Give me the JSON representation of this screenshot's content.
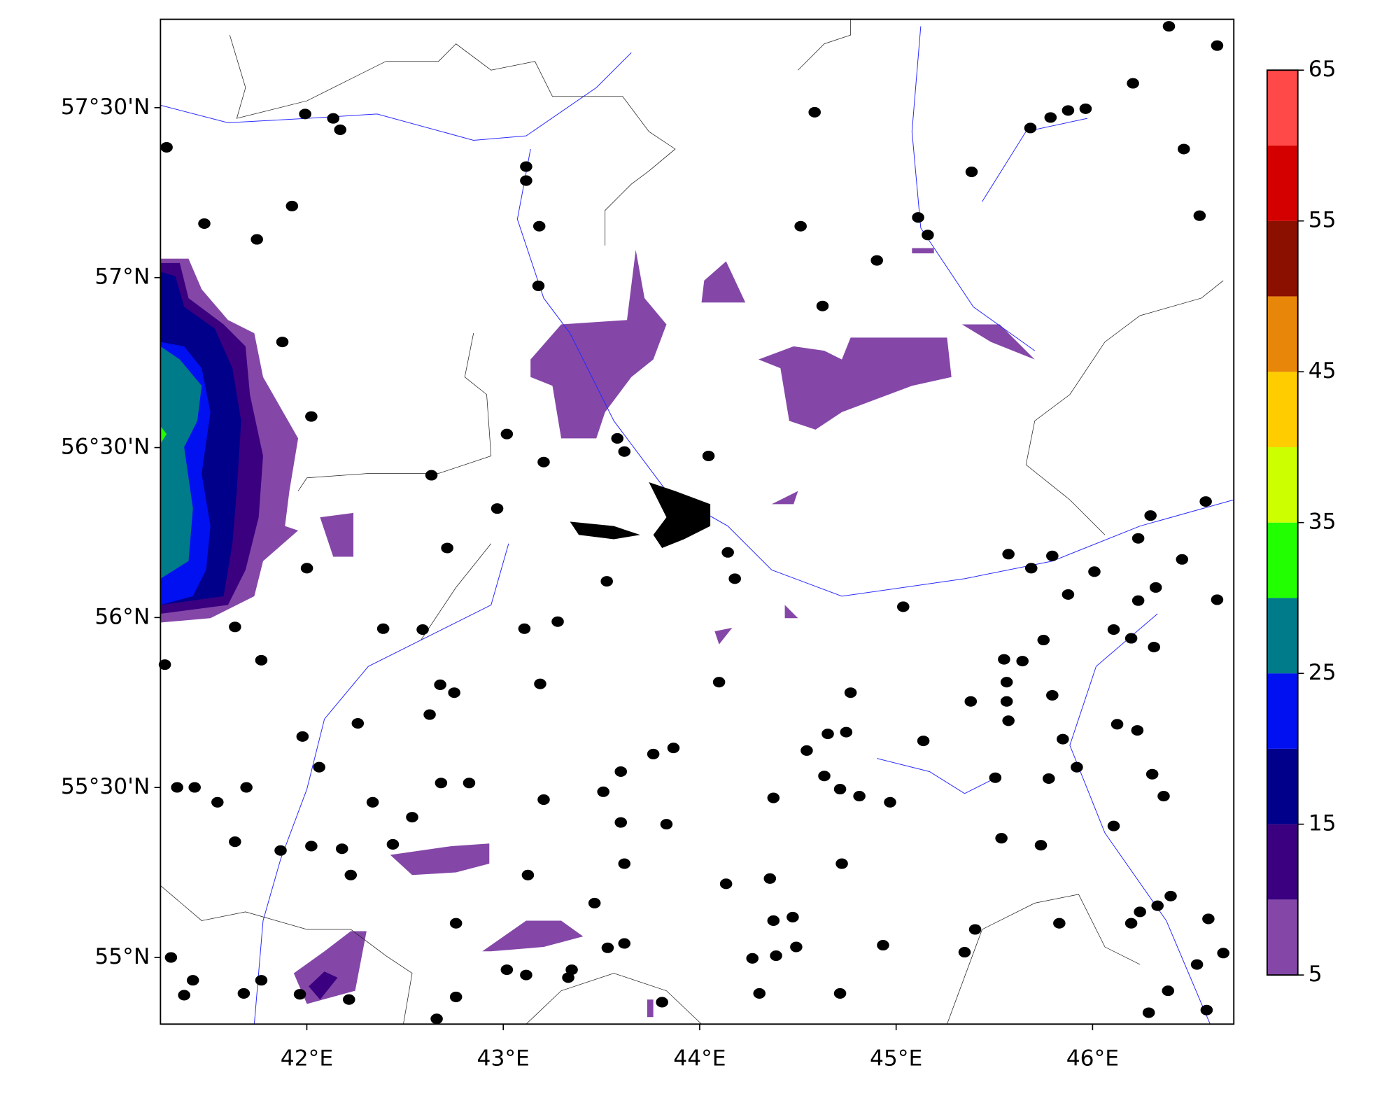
{
  "chart_data": {
    "type": "contour-map",
    "xlim": [
      41.255,
      46.719
    ],
    "ylim": [
      54.804,
      57.76
    ],
    "xticks": [
      {
        "value": 42,
        "label": "42°E"
      },
      {
        "value": 43,
        "label": "43°E"
      },
      {
        "value": 44,
        "label": "44°E"
      },
      {
        "value": 45,
        "label": "45°E"
      },
      {
        "value": 46,
        "label": "46°E"
      }
    ],
    "yticks": [
      {
        "value": 55,
        "label": "55°N"
      },
      {
        "value": 55.5,
        "label": "55°30'N"
      },
      {
        "value": 56,
        "label": "56°N"
      },
      {
        "value": 56.5,
        "label": "56°30'N"
      },
      {
        "value": 57,
        "label": "57°N"
      },
      {
        "value": 57.5,
        "label": "57°30'N"
      }
    ],
    "colorbar": {
      "levels": [
        5,
        10,
        15,
        20,
        25,
        30,
        35,
        40,
        45,
        50,
        55,
        60,
        65
      ],
      "colors": [
        "#8447a8",
        "#3a0080",
        "#00008b",
        "#0010f0",
        "#007b8a",
        "#22ff00",
        "#ccff00",
        "#ffcc00",
        "#e8860a",
        "#8b1000",
        "#d40000",
        "#ff4848"
      ],
      "ticks": [
        5,
        15,
        25,
        35,
        45,
        55,
        65
      ]
    }
  }
}
